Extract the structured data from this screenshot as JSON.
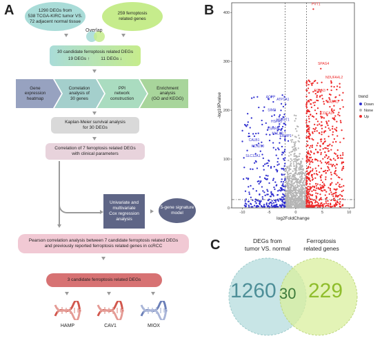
{
  "panel_a": {
    "letter": "A",
    "top_left": "1290 DEGs  from\n538 TCGA-KIRC tumor VS.\n72 adjacent normal tissue",
    "top_right": "259 ferroptosis\nrelated genes",
    "overlap_label": "Overlap",
    "candidates_title": "30 candidate ferroptosis related DEGs",
    "candidates_up": "19 DEGs ↑",
    "candidates_down": "11 DEGs ↓",
    "steps": [
      "Gene\nexpression\nheatmap",
      "Correlation\nanalysis of\n30 genes",
      "PPI\nnetwork\nconstruction",
      "Enrichment\nanalysis\n(GO and KEGG)"
    ],
    "km": "Kaplan-Meier survival analysis\nfor 30 DEGs",
    "clinical": "Correlation of 7 ferroptosis related DEGs\nwith clinical parameters",
    "cox": "Univariate and\nmultivariate\nCox regression\nanalysis",
    "model": "5-gene signature\nmodel",
    "pearson": "Pearson correlation analysis between 7 candidate ferroptosis related DEGs\nand previously reported ferroptosis related genes in ccRCC",
    "final": "3 candidate ferroptosis related DEGs",
    "genes": [
      "HAMP",
      "CAV1",
      "MIOX"
    ],
    "colors": {
      "teal": "#a9dcd8",
      "green": "#c6ec8c",
      "slate": "#8a95b5",
      "gray": "#d9d9d9",
      "pink": "#e8d3dc",
      "navy": "#5e6586",
      "salmon": "#d77273"
    }
  },
  "panel_b": {
    "letter": "B",
    "legend_title": "trend",
    "legend": [
      {
        "name": "Down",
        "color": "#2f2fcf"
      },
      {
        "name": "None",
        "color": "#b5b5b5"
      },
      {
        "name": "Up",
        "color": "#ee2a2a"
      }
    ],
    "chart_data": {
      "type": "scatter",
      "xlabel": "log2FoldChange",
      "ylabel": "-log10Pvalue",
      "xlim": [
        -12,
        11
      ],
      "ylim": [
        0,
        420
      ],
      "xticks": [
        -10,
        -5,
        0,
        5,
        10
      ],
      "yticks": [
        0,
        100,
        200,
        300,
        400
      ],
      "vlines": [
        -2,
        2
      ],
      "hline": 17,
      "labels_down": [
        {
          "name": "ACPP",
          "x": -4.7,
          "y": 225
        },
        {
          "name": "ATP1A1",
          "x": -2.4,
          "y": 220
        },
        {
          "name": "SIM2",
          "x": -4.5,
          "y": 198
        },
        {
          "name": "HSPA5",
          "x": -3.6,
          "y": 175
        },
        {
          "name": "HS6ST1",
          "x": -2.4,
          "y": 178
        },
        {
          "name": "ESRRB",
          "x": -4.2,
          "y": 160
        },
        {
          "name": "CALB1",
          "x": -7.8,
          "y": 137
        },
        {
          "name": "MYLK3",
          "x": -3.4,
          "y": 150
        },
        {
          "name": "KCNJ10",
          "x": -7.1,
          "y": 124
        },
        {
          "name": "ERMP1",
          "x": -1.9,
          "y": 145
        },
        {
          "name": "SLC12A1",
          "x": -8.0,
          "y": 104
        }
      ],
      "labels_up": [
        {
          "name": "PVT1",
          "x": 3.8,
          "y": 415
        },
        {
          "name": "SPAG4",
          "x": 5.2,
          "y": 293
        },
        {
          "name": "NDUFA4L2",
          "x": 7.2,
          "y": 265
        },
        {
          "name": "EGLN3",
          "x": 4.5,
          "y": 238
        },
        {
          "name": "GABRD",
          "x": 6.9,
          "y": 215
        },
        {
          "name": "CDCA3",
          "x": 5.8,
          "y": 192
        }
      ]
    }
  },
  "panel_c": {
    "letter": "C",
    "left_title": "DEGs  from\ntumor VS. normal",
    "right_title": "Ferroptosis\nrelated genes",
    "left_only": "1260",
    "overlap": "30",
    "right_only": "229"
  }
}
